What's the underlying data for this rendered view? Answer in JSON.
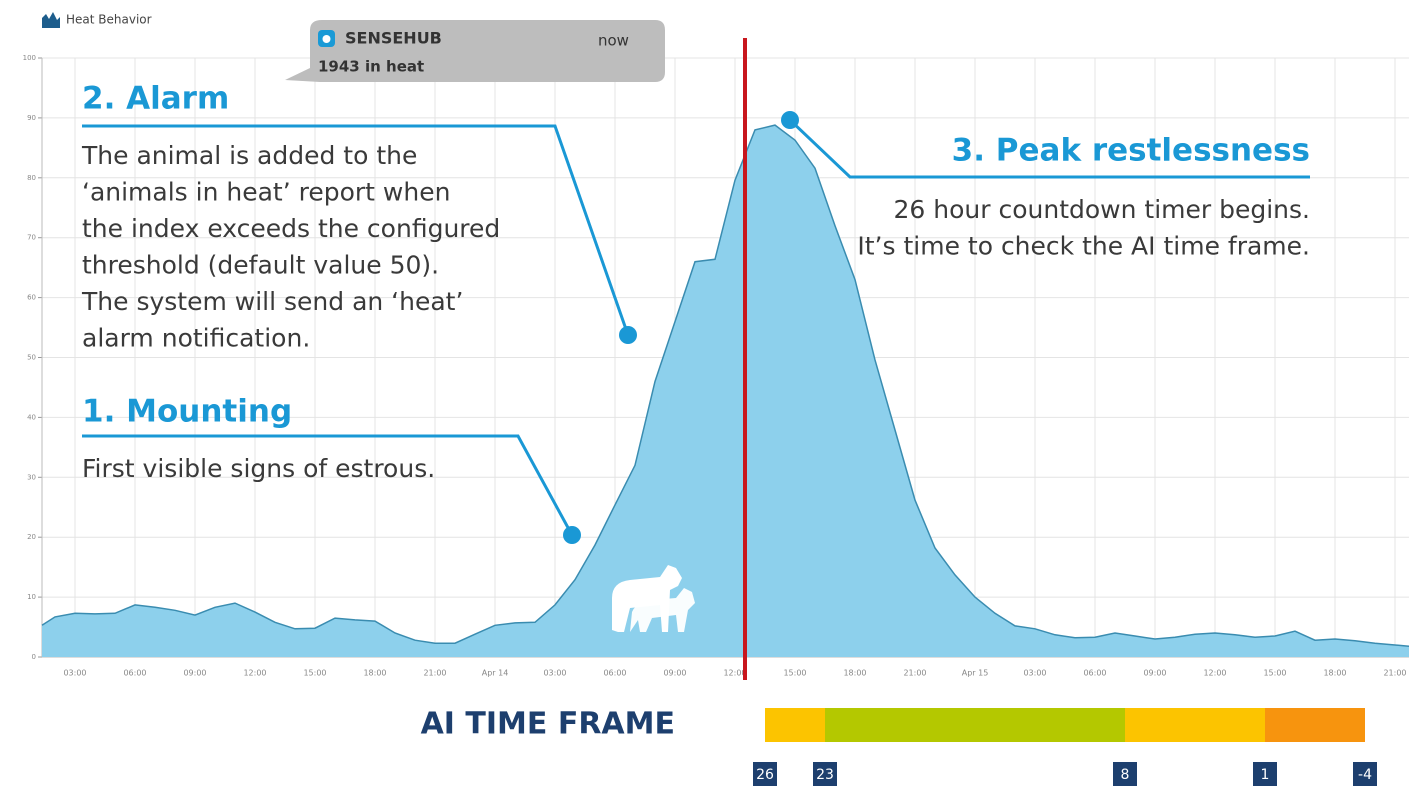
{
  "header": {
    "title": "Heat Behavior"
  },
  "notification": {
    "app": "SENSEHUB",
    "time": "now",
    "message": "1943 in heat"
  },
  "chart_data": {
    "type": "area",
    "x": [
      1.35,
      2,
      3,
      4,
      5,
      6,
      7,
      8,
      9,
      10,
      11,
      12,
      13,
      14,
      15,
      16,
      17,
      18,
      19,
      20,
      21,
      22,
      23,
      24,
      25,
      26,
      27,
      28,
      29,
      30,
      31,
      32,
      33,
      34,
      35,
      36,
      37,
      38,
      39,
      40,
      41,
      42,
      43,
      44,
      45,
      46,
      47,
      48,
      49,
      50,
      51,
      52,
      53,
      54,
      55,
      56,
      57,
      58,
      59,
      60,
      61,
      62,
      63,
      64,
      65,
      66,
      67,
      68,
      69,
      69.7
    ],
    "values": [
      5.3,
      6.7,
      7.3,
      7.2,
      7.3,
      8.7,
      8.3,
      7.8,
      7,
      8.3,
      9,
      7.5,
      5.8,
      4.7,
      4.8,
      6.5,
      6.2,
      6,
      4,
      2.8,
      2.3,
      2.3,
      3.8,
      5.3,
      5.7,
      5.8,
      8.7,
      12.9,
      18.7,
      25.4,
      32,
      46,
      56,
      66,
      66.4,
      79.6,
      88,
      88.8,
      86.3,
      81.6,
      72,
      63,
      49.6,
      37.9,
      26.2,
      18.2,
      13.7,
      10,
      7.3,
      5.2,
      4.7,
      3.7,
      3.2,
      3.3,
      4,
      3.5,
      3,
      3.3,
      3.8,
      4,
      3.7,
      3.3,
      3.5,
      4.3,
      2.8,
      3,
      2.7,
      2.3,
      2,
      1.8
    ],
    "color": "#8dd0ec",
    "line_color": "#3a8cb0",
    "xlim": [
      1.35,
      69.7
    ],
    "ylim": [
      0,
      100
    ],
    "yticks": [
      0,
      10,
      20,
      30,
      40,
      50,
      60,
      70,
      80,
      90,
      100
    ],
    "xticks": [
      {
        "value": 3,
        "label": "03:00"
      },
      {
        "value": 6,
        "label": "06:00"
      },
      {
        "value": 9,
        "label": "09:00"
      },
      {
        "value": 12,
        "label": "12:00"
      },
      {
        "value": 15,
        "label": "15:00"
      },
      {
        "value": 18,
        "label": "18:00"
      },
      {
        "value": 21,
        "label": "21:00"
      },
      {
        "value": 24,
        "label": "Apr 14"
      },
      {
        "value": 27,
        "label": "03:00"
      },
      {
        "value": 30,
        "label": "06:00"
      },
      {
        "value": 33,
        "label": "09:00"
      },
      {
        "value": 36,
        "label": "12:00"
      },
      {
        "value": 39,
        "label": "15:00"
      },
      {
        "value": 42,
        "label": "18:00"
      },
      {
        "value": 45,
        "label": "21:00"
      },
      {
        "value": 48,
        "label": "Apr 15"
      },
      {
        "value": 51,
        "label": "03:00"
      },
      {
        "value": 54,
        "label": "06:00"
      },
      {
        "value": 57,
        "label": "09:00"
      },
      {
        "value": 60,
        "label": "12:00"
      },
      {
        "value": 63,
        "label": "15:00"
      },
      {
        "value": 66,
        "label": "18:00"
      },
      {
        "value": 69,
        "label": "21:00"
      }
    ],
    "grid": true,
    "marker_line": {
      "x": 36.5,
      "color": "#c8161d"
    }
  },
  "annotations": [
    {
      "title": "2. Alarm",
      "lines": [
        "The animal is added to the",
        "‘animals in heat’ report when",
        "the index exceeds the configured",
        "threshold (default value 50).",
        "The system will send an ‘heat’",
        "alarm notification."
      ]
    },
    {
      "title": "1. Mounting",
      "lines": [
        "First visible signs of estrous."
      ]
    },
    {
      "title": "3. Peak restlessness",
      "lines": [
        "26 hour countdown timer begins.",
        "It’s time to check the AI time frame."
      ]
    }
  ],
  "time_frame": {
    "title": "AI TIME FRAME",
    "ticks": [
      26,
      23,
      8,
      1,
      -4
    ],
    "colors": [
      "#fcc400",
      "#b4c800",
      "#fcc400",
      "#f7940e"
    ]
  }
}
